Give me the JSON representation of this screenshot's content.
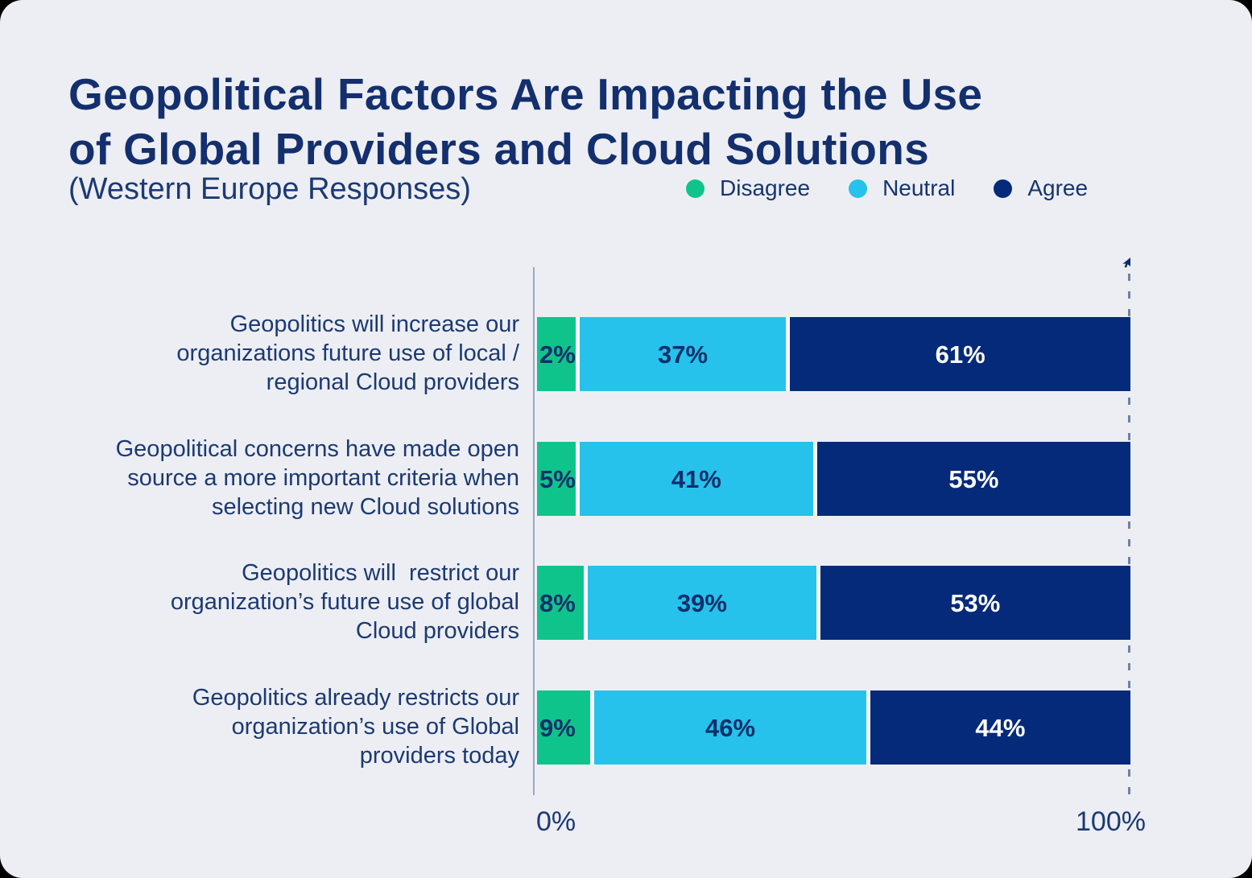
{
  "title": "Geopolitical Factors Are Impacting the Use of Global Providers and Cloud Solutions",
  "title_lines": [
    "Geopolitical Factors Are Impacting the Use",
    "of Global Providers and Cloud Solutions"
  ],
  "subtitle": "(Western Europe Responses)",
  "legend": [
    {
      "label": "Disagree",
      "color": "#0FC48B"
    },
    {
      "label": "Neutral",
      "color": "#26C2EB"
    },
    {
      "label": "Agree",
      "color": "#052A7A"
    }
  ],
  "colors": {
    "card_background": "#EDEEF3",
    "outer_background": "#000000",
    "title_text": "#132F6E",
    "body_text": "#1B3A74",
    "value_text_dark": "#0D2F6B",
    "value_text_light": "#FFFFFF",
    "axis_line": "#9AA8C7",
    "dashed_line": "#7082A3"
  },
  "chart_data": {
    "type": "bar",
    "orientation": "horizontal",
    "stacked": true,
    "title": "Geopolitical Factors Are Impacting the Use of Global Providers and Cloud Solutions",
    "subtitle": "(Western Europe Responses)",
    "legend_position": "top-right",
    "xlim": [
      0,
      100
    ],
    "x_ticks": [
      "0%",
      "100%"
    ],
    "value_suffix": "%",
    "categories": [
      "Geopolitics will increase our organizations future use of local / regional Cloud providers",
      "Geopolitical concerns have made open source a more important criteria when selecting new Cloud solutions",
      "Geopolitics will  restrict our organization’s future use of global Cloud providers",
      "Geopolitics already restricts our organization’s use of Global providers today"
    ],
    "categories_lines": [
      [
        "Geopolitics will increase our",
        "organizations future use of local /",
        "regional Cloud providers"
      ],
      [
        "Geopolitical concerns have made open",
        "source a more important criteria when",
        "selecting new Cloud solutions"
      ],
      [
        "Geopolitics will  restrict our",
        "organization’s future use of global",
        "Cloud providers"
      ],
      [
        "Geopolitics already restricts our",
        "organization’s use of Global",
        "providers today"
      ]
    ],
    "series": [
      {
        "name": "Disagree",
        "color": "#0FC48B",
        "label_color": "#0D2F6B",
        "values": [
          2,
          5,
          8,
          9
        ]
      },
      {
        "name": "Neutral",
        "color": "#26C2EB",
        "label_color": "#0D2F6B",
        "values": [
          37,
          41,
          39,
          46
        ]
      },
      {
        "name": "Agree",
        "color": "#052A7A",
        "label_color": "#FFFFFF",
        "values": [
          61,
          55,
          53,
          44
        ]
      }
    ]
  }
}
